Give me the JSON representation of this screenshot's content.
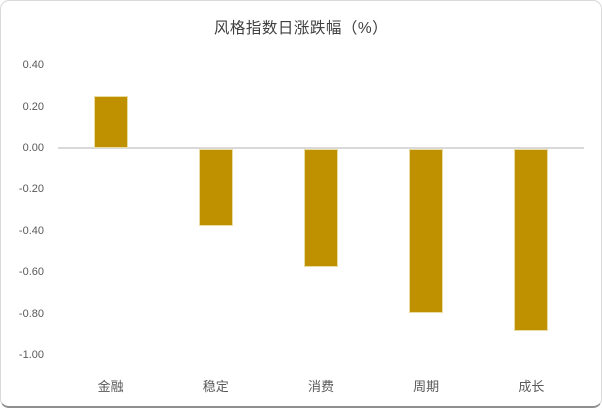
{
  "card": {
    "background": "#ffffff",
    "border_color": "#d9d9d9",
    "bottom_border_color": "#8f8f8f"
  },
  "chart_data": {
    "type": "bar",
    "title": "风格指数日涨跌幅（%）",
    "categories": [
      "金融",
      "稳定",
      "消费",
      "周期",
      "成长"
    ],
    "values": [
      0.25,
      -0.37,
      -0.57,
      -0.79,
      -0.88
    ],
    "xlabel": "",
    "ylabel": "",
    "ylim": [
      -1.0,
      0.4
    ],
    "ytick_interval": 0.2,
    "ytick_labels": [
      "0.40",
      "0.20",
      "0.00",
      "-0.20",
      "-0.40",
      "-0.60",
      "-0.80",
      "-1.00"
    ],
    "grid": false,
    "legend_position": "none",
    "baseline_at": 0.0,
    "bar_color": "#bf9000",
    "bar_edge_color": "#e9dca2",
    "baseline_color": "#d9d9d9",
    "tick_label_color": "#595959",
    "title_color": "#404040"
  }
}
